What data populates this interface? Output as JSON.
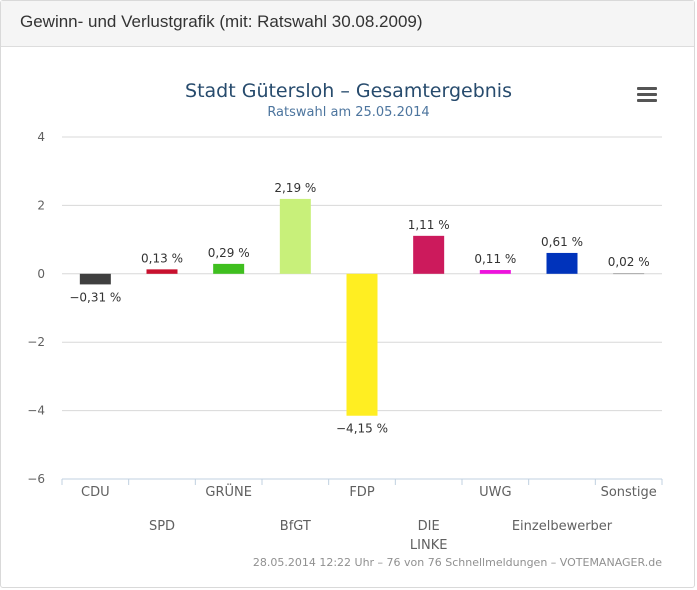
{
  "panel": {
    "title": "Gewinn- und Verlustgrafik (mit: Ratswahl 30.08.2009)"
  },
  "menu_icon": "hamburger-menu-icon",
  "credits": "28.05.2014 12:22 Uhr – 76 von 76 Schnellmeldungen – VOTEMANAGER.de",
  "chart_data": {
    "type": "bar",
    "title": "Stadt Gütersloh – Gesamtergebnis",
    "subtitle": "Ratswahl am 25.05.2014",
    "xlabel": "",
    "ylabel": "",
    "ylim": [
      -6,
      4
    ],
    "yticks": [
      4,
      2,
      0,
      -2,
      -4,
      -6
    ],
    "ytick_labels": [
      "4",
      "2",
      "0",
      "−2",
      "−4",
      "−6"
    ],
    "grid": true,
    "legend": "none",
    "categories": [
      "CDU",
      "SPD",
      "GRÜNE",
      "BfGT",
      "FDP",
      "DIE LINKE",
      "UWG",
      "Einzelbewerber",
      "Sonstige"
    ],
    "category_lines": [
      [
        "CDU"
      ],
      [
        "SPD"
      ],
      [
        "GRÜNE"
      ],
      [
        "BfGT"
      ],
      [
        "FDP"
      ],
      [
        "DIE",
        "LINKE"
      ],
      [
        "UWG"
      ],
      [
        "Einzelbewerber"
      ],
      [
        "Sonstige"
      ]
    ],
    "values": [
      -0.31,
      0.13,
      0.29,
      2.19,
      -4.15,
      1.11,
      0.11,
      0.61,
      0.02
    ],
    "data_labels": [
      "−0,31 %",
      "0,13 %",
      "0,29 %",
      "2,19 %",
      "−4,15 %",
      "1,11 %",
      "0,11 %",
      "0,61 %",
      "0,02 %"
    ],
    "colors": [
      "#3f3f3f",
      "#c8102e",
      "#3fbf1f",
      "#c8f07a",
      "#ffee22",
      "#cc1a5c",
      "#ee11dd",
      "#0033bb",
      "#aaaaaa"
    ]
  }
}
